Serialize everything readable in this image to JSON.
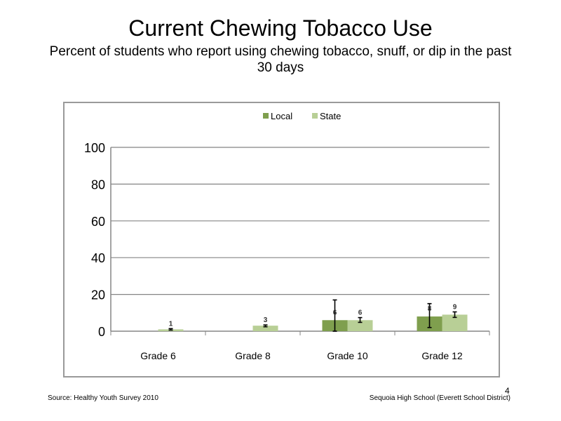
{
  "slide": {
    "title": "Current Chewing Tobacco Use",
    "subtitle": "Percent of students who report using chewing tobacco, snuff, or dip in the past 30 days",
    "source": "Source: Healthy Youth Survey 2010",
    "school": "Sequoia High School (Everett School District)",
    "page_number": "4"
  },
  "chart_data": {
    "type": "bar",
    "categories": [
      "Grade 6",
      "Grade 8",
      "Grade 10",
      "Grade 12"
    ],
    "series": [
      {
        "name": "Local",
        "color": "#7f9f4e",
        "values": [
          null,
          null,
          6,
          8
        ],
        "labels": [
          "",
          "",
          "6",
          "8"
        ],
        "error_low": [
          null,
          null,
          0,
          2
        ],
        "error_high": [
          null,
          null,
          17,
          15
        ]
      },
      {
        "name": "State",
        "color": "#b8cf96",
        "values": [
          1,
          3,
          6,
          9
        ],
        "labels": [
          "1",
          "3",
          "6",
          "9"
        ],
        "error_low": [
          0.6,
          2.4,
          4.8,
          7.5
        ],
        "error_high": [
          1.4,
          3.4,
          7.4,
          10.5
        ]
      }
    ],
    "ylim": [
      0,
      100
    ],
    "yticks": [
      0,
      20,
      40,
      60,
      80,
      100
    ],
    "grid": true,
    "legend": "top-center"
  }
}
